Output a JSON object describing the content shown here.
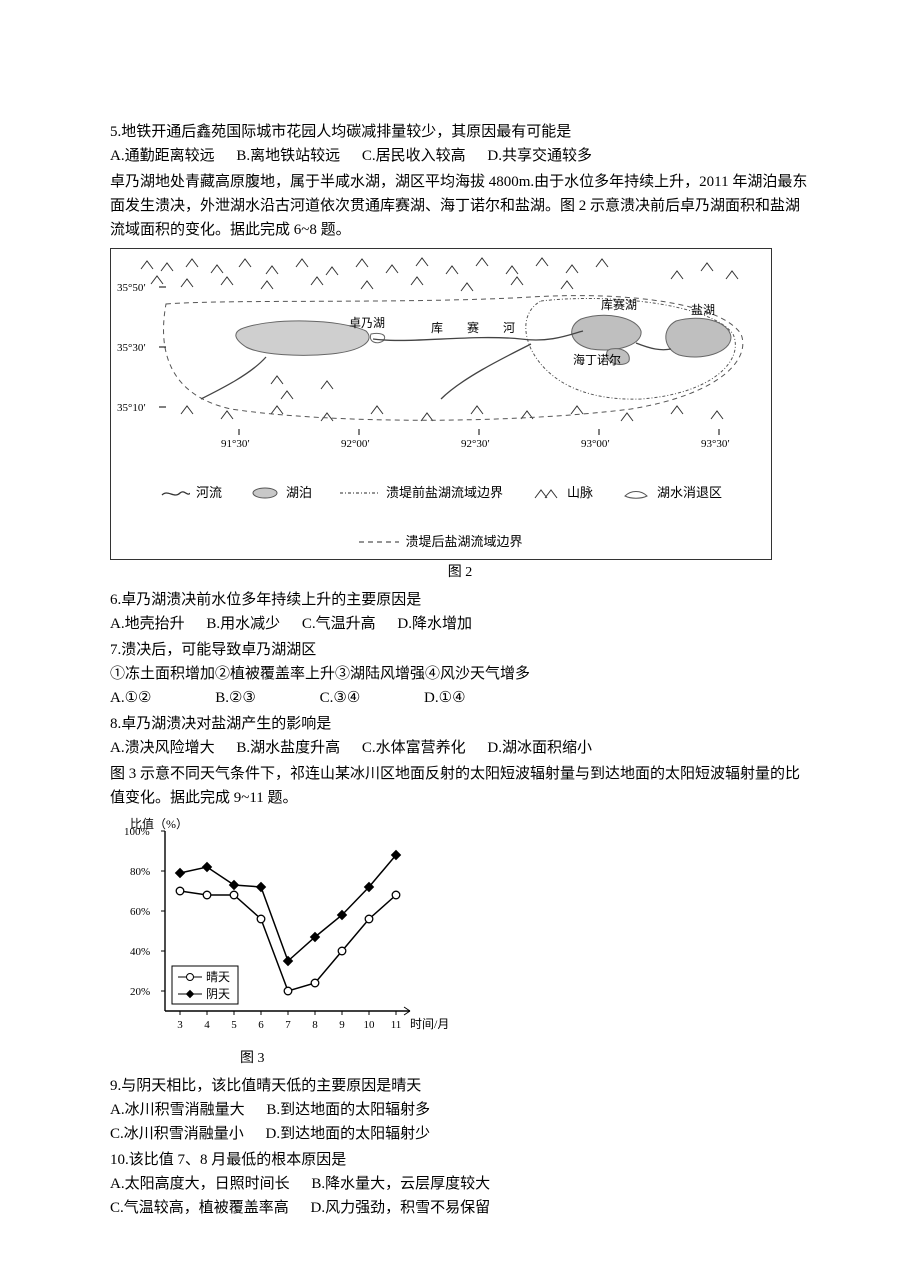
{
  "q5": {
    "text": "5.地铁开通后鑫苑国际城市花园人均碳减排量较少，其原因最有可能是",
    "A": "A.通勤距离较远",
    "B": "B.离地铁站较远",
    "C": "C.居民收入较高",
    "D": "D.共享交通较多"
  },
  "passage1": "卓乃湖地处青藏高原腹地，属于半咸水湖，湖区平均海拔 4800m.由于水位多年持续上升，2011 年湖泊最东面发生溃决，外泄湖水沿古河道依次贯通库赛湖、海丁诺尔和盐湖。图 2 示意溃决前后卓乃湖面积和盐湖流域面积的变化。据此完成 6~8 题。",
  "map": {
    "lat_labels": [
      "35°50′",
      "35°30′",
      "35°10′"
    ],
    "lon_labels": [
      "91°30′",
      "92°00′",
      "92°30′",
      "93°00′",
      "93°30′"
    ],
    "lake_labels": {
      "zhuonai": "卓乃湖",
      "kusai_river": "库　赛　河",
      "kusai_lake": "库赛湖",
      "haiding": "海丁诺尔",
      "yanhu": "盐湖"
    },
    "legend": {
      "river": "河流",
      "mountain": "山脉",
      "lake": "湖泊",
      "recession": "湖水消退区",
      "pre_boundary": "溃堤前盐湖流域边界",
      "post_boundary": "溃堤后盐湖流域边界"
    },
    "caption": "图 2"
  },
  "q6": {
    "text": "6.卓乃湖溃决前水位多年持续上升的主要原因是",
    "A": "A.地壳抬升",
    "B": "B.用水减少",
    "C": "C.气温升高",
    "D": "D.降水增加"
  },
  "q7": {
    "text": "7.溃决后，可能导致卓乃湖湖区",
    "items": "①冻土面积增加②植被覆盖率上升③湖陆风增强④风沙天气增多",
    "A": "A.①②",
    "B": "B.②③",
    "C": "C.③④",
    "D": "D.①④"
  },
  "q8": {
    "text": "8.卓乃湖溃决对盐湖产生的影响是",
    "A": "A.溃决风险增大",
    "B": "B.湖水盐度升高",
    "C": "C.水体富营养化",
    "D": "D.湖冰面积缩小"
  },
  "passage2": "图 3 示意不同天气条件下，祁连山某冰川区地面反射的太阳短波辐射量与到达地面的太阳短波辐射量的比值变化。据此完成 9~11 题。",
  "chart": {
    "y_title": "比值（%）",
    "x_title": "时间/月",
    "x_labels": [
      "3",
      "4",
      "5",
      "6",
      "7",
      "8",
      "9",
      "10",
      "11"
    ],
    "y_ticks": [
      "20%",
      "40%",
      "60%",
      "80%",
      "100%"
    ],
    "series": [
      {
        "name": "晴天",
        "marker": "circle",
        "color": "#000000",
        "fill": "#ffffff",
        "x": [
          3,
          4,
          5,
          6,
          7,
          8,
          9,
          10,
          11
        ],
        "y": [
          70,
          68,
          68,
          56,
          20,
          24,
          40,
          56,
          68
        ]
      },
      {
        "name": "阴天",
        "marker": "diamond",
        "color": "#000000",
        "fill": "#000000",
        "x": [
          3,
          4,
          5,
          6,
          7,
          8,
          9,
          10,
          11
        ],
        "y": [
          79,
          82,
          73,
          72,
          35,
          47,
          58,
          72,
          88
        ]
      }
    ],
    "xlim": [
      3,
      11
    ],
    "ylim": [
      15,
      100
    ],
    "caption": "图 3"
  },
  "q9": {
    "text": "9.与阴天相比，该比值晴天低的主要原因是晴天",
    "A": "A.冰川积雪消融量大",
    "B": "B.到达地面的太阳辐射多",
    "C": "C.冰川积雪消融量小",
    "D": "D.到达地面的太阳辐射少"
  },
  "q10": {
    "text": "10.该比值 7、8 月最低的根本原因是",
    "A": "A.太阳高度大，日照时间长",
    "B": "B.降水量大，云层厚度较大",
    "C": "C.气温较高，植被覆盖率高",
    "D": "D.风力强劲，积雪不易保留"
  }
}
